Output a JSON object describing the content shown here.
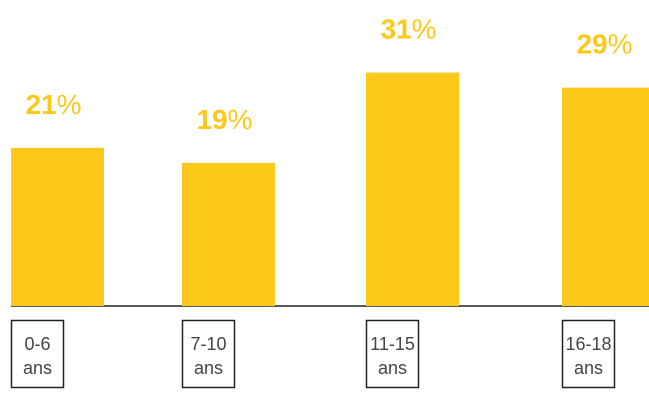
{
  "chart_data": {
    "type": "bar",
    "categories": [
      "0-6 ans",
      "7-10 ans",
      "11-15 ans",
      "16-18 ans"
    ],
    "values": [
      21,
      19,
      31,
      29
    ],
    "value_labels": [
      "21%",
      "19%",
      "31%",
      "29%"
    ],
    "color": "#fcc81a"
  }
}
